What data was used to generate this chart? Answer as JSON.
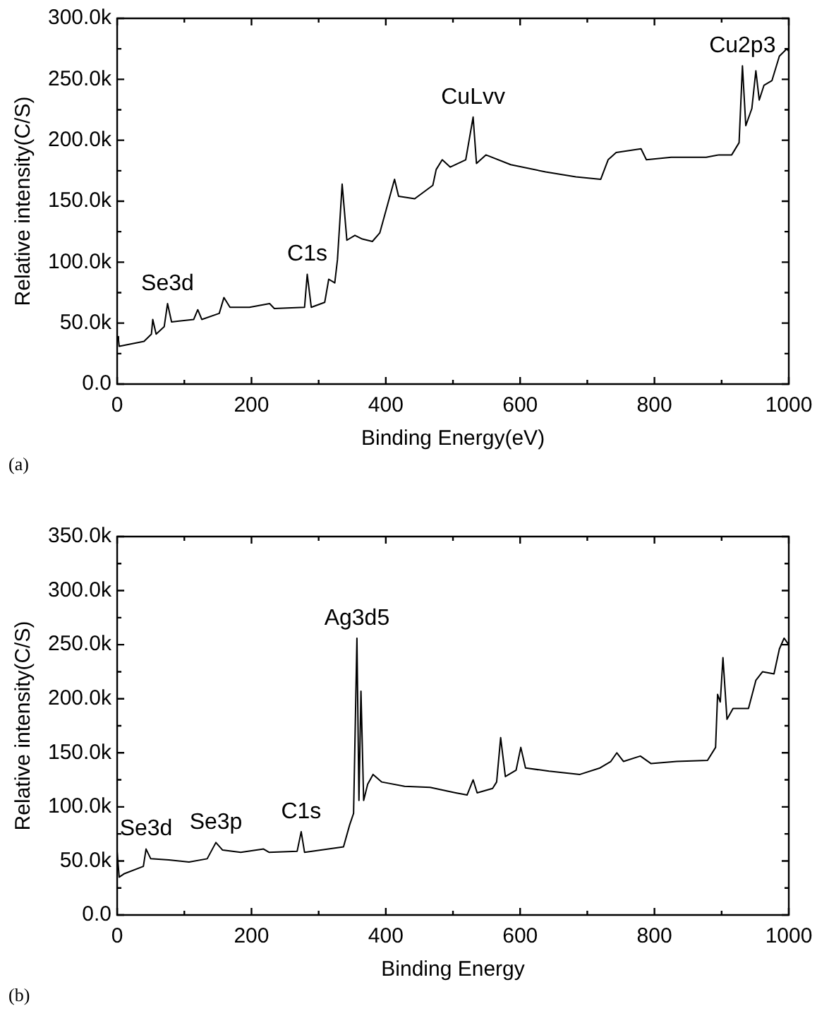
{
  "chart_data": [
    {
      "type": "line",
      "xlabel": "Binding Energy(eV)",
      "ylabel": "Relative intensity(C/S)",
      "annotations": [
        "(a)",
        {
          "text": "Se3d",
          "x": 75,
          "y": 66000
        },
        {
          "text": "C1s",
          "x": 283,
          "y": 90000
        },
        {
          "text": "CuLvv",
          "x": 530,
          "y": 219000
        },
        {
          "text": "Cu2p3",
          "x": 931,
          "y": 261000
        }
      ],
      "xlim": [
        0,
        1000
      ],
      "xticks": [
        0,
        {
          "value": 100,
          "label": null
        },
        200,
        {
          "value": 300,
          "label": null
        },
        400,
        {
          "value": 500,
          "label": null
        },
        600,
        {
          "value": 700,
          "label": null
        },
        800,
        {
          "value": 900,
          "label": null
        },
        1000
      ],
      "ylim": [
        0,
        300000
      ],
      "yticks": [
        {
          "value": 0,
          "label": "0.0"
        },
        {
          "value": 25000,
          "label": null
        },
        {
          "value": 50000,
          "label": "50.0k"
        },
        {
          "value": 75000,
          "label": null
        },
        {
          "value": 100000,
          "label": "100.0k"
        },
        {
          "value": 125000,
          "label": null
        },
        {
          "value": 150000,
          "label": "150.0k"
        },
        {
          "value": 175000,
          "label": null
        },
        {
          "value": 200000,
          "label": "200.0k"
        },
        {
          "value": 225000,
          "label": null
        },
        {
          "value": 250000,
          "label": "250.0k"
        },
        {
          "value": 275000,
          "label": null
        },
        {
          "value": 300000,
          "label": "300.0k"
        }
      ],
      "grid": false,
      "legend": false,
      "series": [
        {
          "color": "#000000",
          "x": [
            0,
            2,
            3,
            40,
            51,
            53,
            58,
            70,
            75,
            81,
            114,
            120,
            126,
            152,
            159,
            168,
            197,
            227,
            234,
            279,
            283,
            289,
            309,
            315,
            324,
            328,
            335,
            342,
            354,
            365,
            380,
            391,
            402,
            413,
            419,
            443,
            470,
            475,
            484,
            496,
            519,
            530,
            535,
            549,
            586,
            638,
            683,
            720,
            731,
            743,
            780,
            788,
            825,
            877,
            896,
            915,
            926,
            931,
            936,
            945,
            951,
            956,
            963,
            975,
            986,
            997,
            1000
          ],
          "values": [
            39000,
            36000,
            31000,
            35000,
            41000,
            53000,
            41000,
            47000,
            66000,
            51000,
            53000,
            61000,
            53000,
            58000,
            71000,
            63000,
            63000,
            66000,
            62000,
            63000,
            90000,
            63000,
            67000,
            86000,
            83000,
            102000,
            164000,
            118000,
            122000,
            119000,
            117000,
            124000,
            146000,
            168000,
            154000,
            152000,
            163000,
            176000,
            184000,
            178000,
            184000,
            219000,
            181000,
            188000,
            180000,
            174000,
            170000,
            168000,
            184000,
            190000,
            193000,
            184000,
            186000,
            186000,
            188000,
            188000,
            198000,
            261000,
            212000,
            226000,
            257000,
            233000,
            245000,
            249000,
            269000,
            275000,
            273000
          ]
        }
      ]
    },
    {
      "type": "line",
      "xlabel": "Binding Energy",
      "ylabel": "Relative intensity(C/S)",
      "annotations": [
        "(b)",
        {
          "text": "Se3d",
          "x": 43,
          "y": 61000
        },
        {
          "text": "Se3p",
          "x": 147,
          "y": 67000
        },
        {
          "text": "C1s",
          "x": 274,
          "y": 77000
        },
        {
          "text": "Ag3d5",
          "x": 357,
          "y": 256000
        }
      ],
      "xlim": [
        0,
        1000
      ],
      "xticks": [
        0,
        {
          "value": 100,
          "label": null
        },
        200,
        {
          "value": 300,
          "label": null
        },
        400,
        {
          "value": 500,
          "label": null
        },
        600,
        {
          "value": 700,
          "label": null
        },
        800,
        {
          "value": 900,
          "label": null
        },
        1000
      ],
      "ylim": [
        0,
        350000
      ],
      "yticks": [
        {
          "value": 0,
          "label": "0.0"
        },
        {
          "value": 25000,
          "label": null
        },
        {
          "value": 50000,
          "label": "50.0k"
        },
        {
          "value": 75000,
          "label": null
        },
        {
          "value": 100000,
          "label": "100.0k"
        },
        {
          "value": 125000,
          "label": null
        },
        {
          "value": 150000,
          "label": "150.0k"
        },
        {
          "value": 175000,
          "label": null
        },
        {
          "value": 200000,
          "label": "200.0k"
        },
        {
          "value": 225000,
          "label": null
        },
        {
          "value": 250000,
          "label": "250.0k"
        },
        {
          "value": 275000,
          "label": null
        },
        {
          "value": 300000,
          "label": "300.0k"
        },
        {
          "value": 325000,
          "label": null
        },
        {
          "value": 350000,
          "label": "350.0k"
        }
      ],
      "grid": false,
      "legend": false,
      "series": [
        {
          "color": "#000000",
          "x": [
            0,
            3,
            10,
            39,
            43,
            50,
            77,
            107,
            134,
            147,
            157,
            184,
            218,
            226,
            268,
            274,
            279,
            337,
            346,
            352,
            357,
            360,
            363,
            367,
            373,
            381,
            394,
            428,
            466,
            504,
            521,
            530,
            536,
            559,
            565,
            571,
            578,
            594,
            601,
            608,
            643,
            689,
            719,
            735,
            744,
            754,
            779,
            795,
            833,
            879,
            891,
            894,
            898,
            902,
            908,
            917,
            940,
            951,
            961,
            978,
            986,
            993,
            1000
          ],
          "values": [
            58000,
            35000,
            38000,
            45000,
            61000,
            52000,
            51000,
            49000,
            52000,
            67000,
            60000,
            58000,
            61000,
            58000,
            59000,
            77000,
            58000,
            63000,
            83000,
            94000,
            256000,
            106000,
            207000,
            106000,
            121000,
            130000,
            123000,
            119000,
            118000,
            113000,
            111000,
            125000,
            113000,
            117000,
            123000,
            164000,
            128000,
            134000,
            155000,
            136000,
            133000,
            130000,
            136000,
            142000,
            150000,
            142000,
            147000,
            140000,
            142000,
            143000,
            155000,
            204000,
            197000,
            238000,
            181000,
            191000,
            191000,
            217000,
            225000,
            223000,
            246000,
            256000,
            250000
          ]
        }
      ]
    }
  ]
}
